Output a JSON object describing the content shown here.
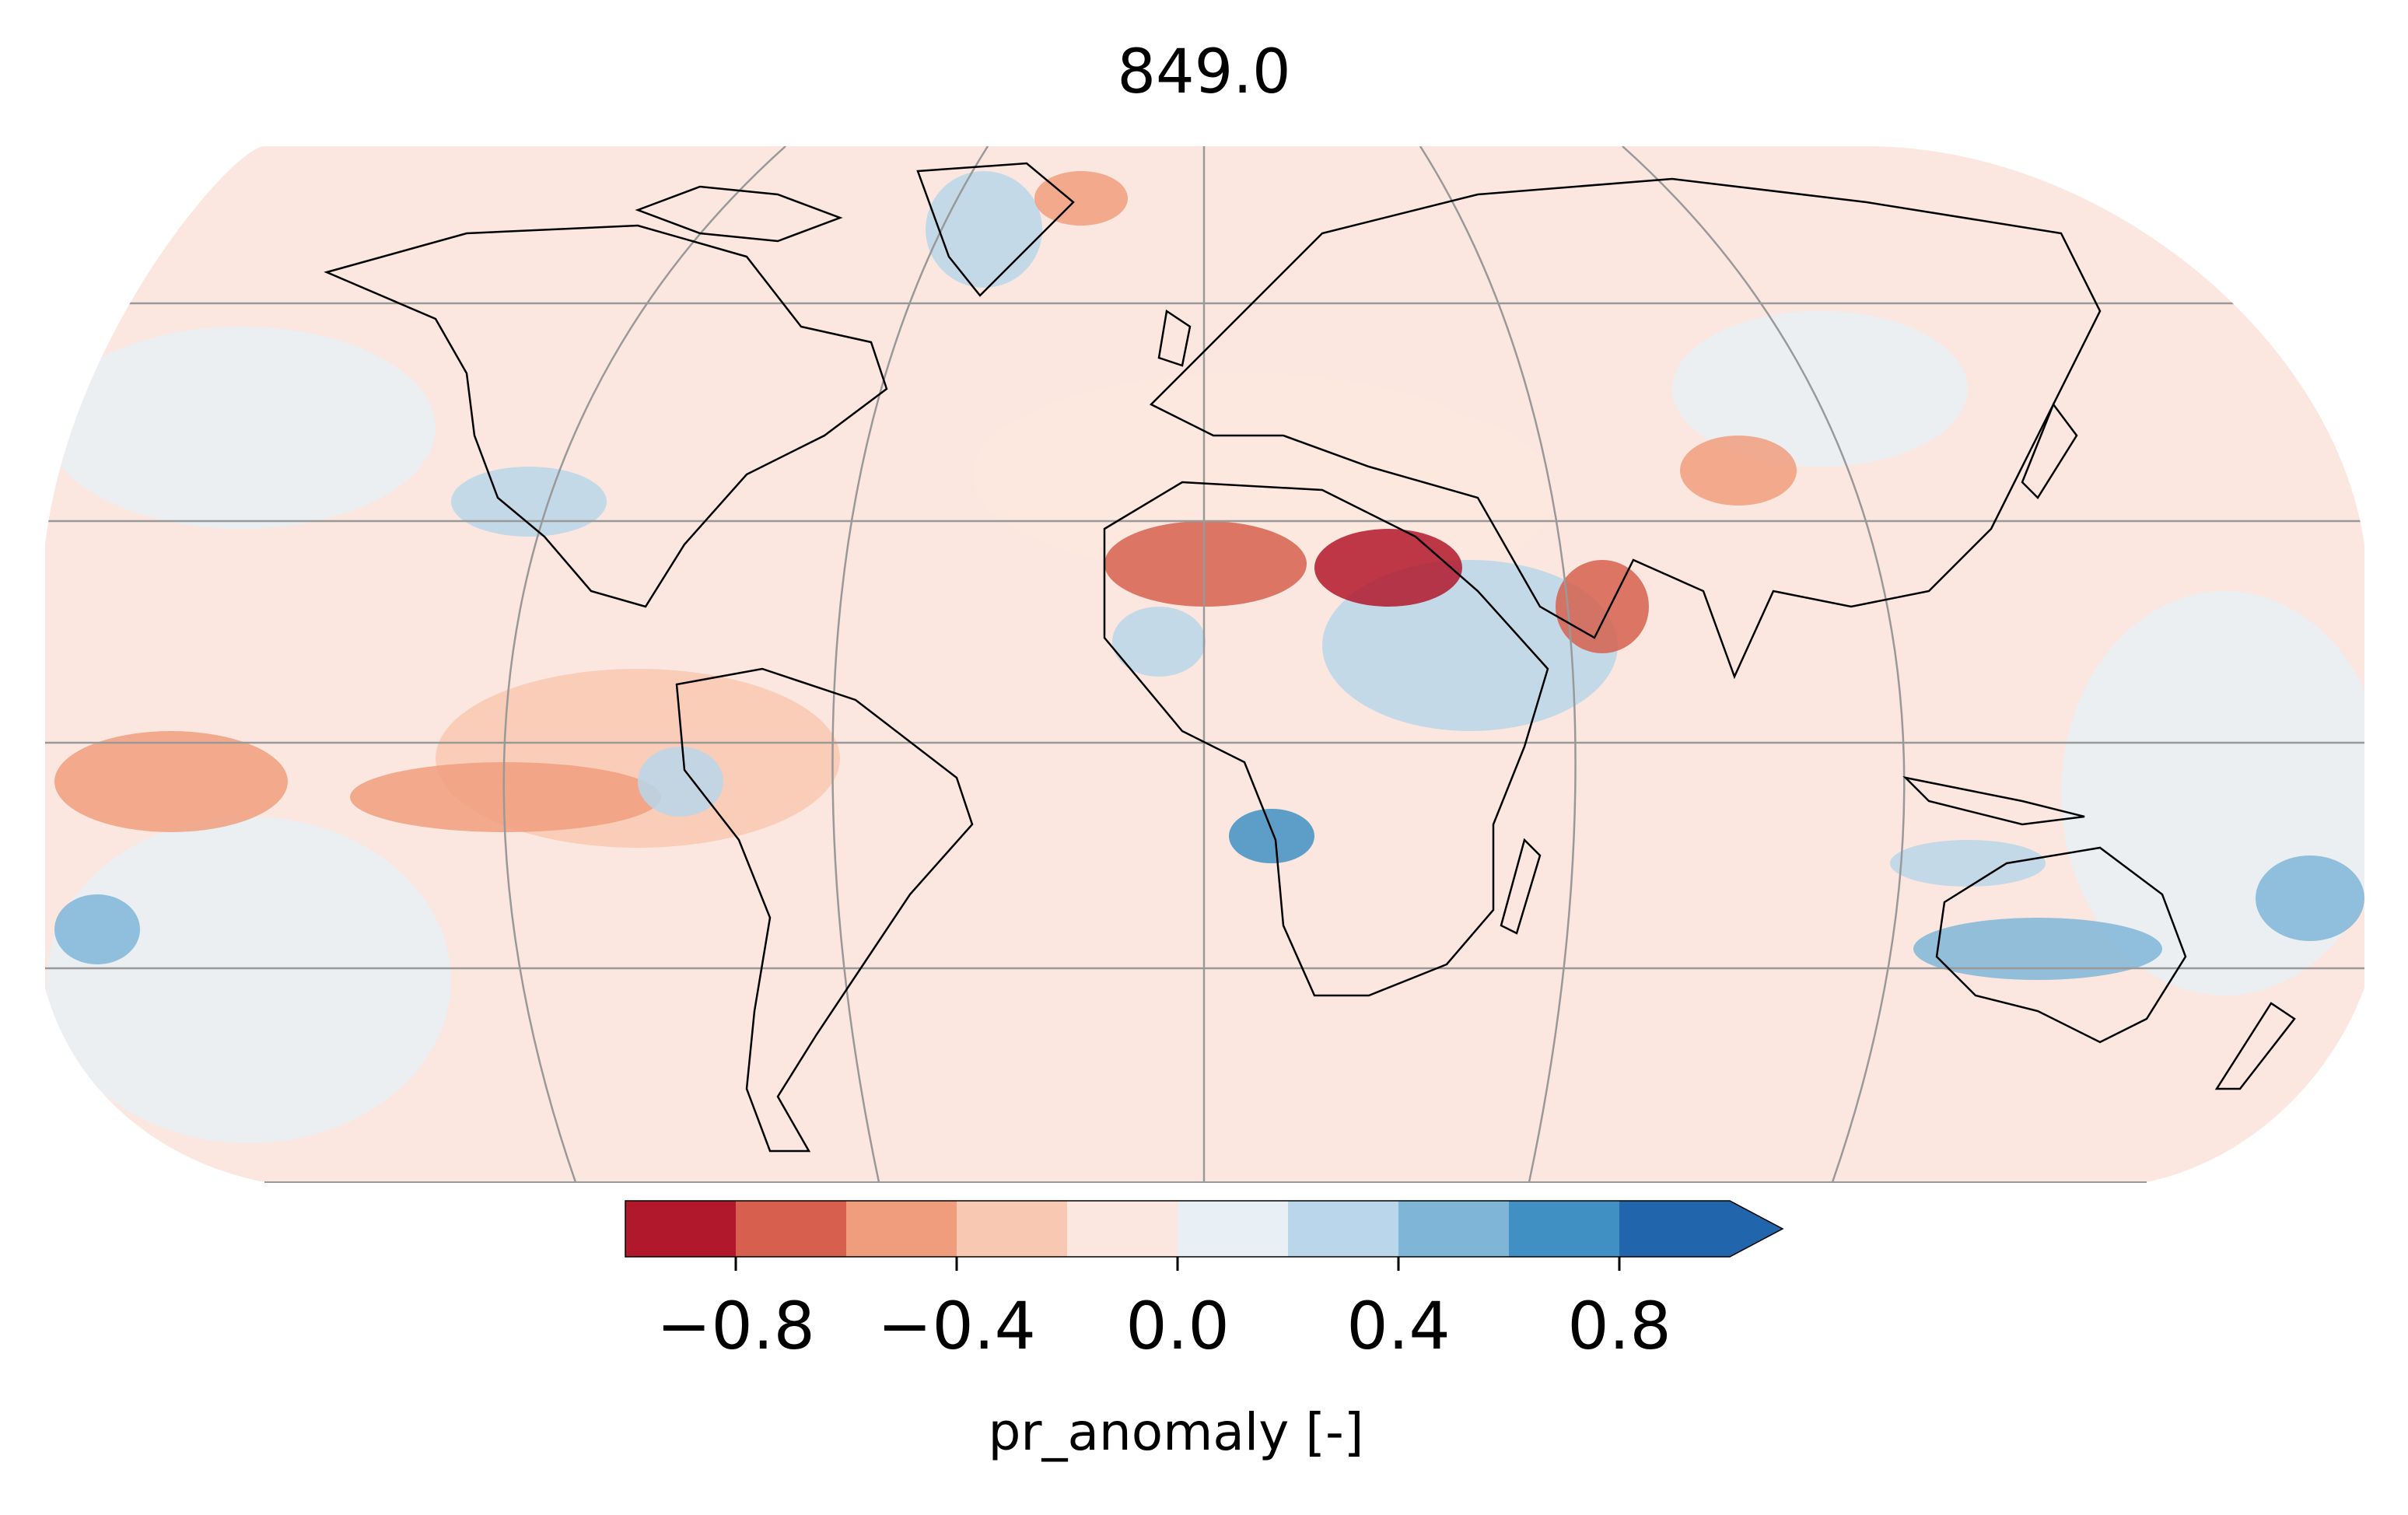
{
  "title": "849.0",
  "map": {
    "projection": "Robinson",
    "variable": "pr_anomaly",
    "graticule": true,
    "coastlines": true,
    "colors": {
      "ocean_neutral_pos": "#fbe7df",
      "ocean_neutral_neg": "#e8f0f6",
      "graticule": "#999999",
      "coastline": "#000000"
    }
  },
  "colorbar": {
    "label": "pr_anomaly [-]",
    "extend": "max",
    "boundaries": [
      -1.0,
      -0.8,
      -0.6,
      -0.4,
      -0.2,
      0.0,
      0.2,
      0.4,
      0.6,
      0.8,
      1.0
    ],
    "colors": [
      "#b2182b",
      "#d6604d",
      "#f09d7e",
      "#f9c8b2",
      "#fbe7df",
      "#e8f0f6",
      "#b9d6ea",
      "#7fb6d8",
      "#4090c4",
      "#2166ac"
    ],
    "extend_color": "#2166ac",
    "ticks": [
      {
        "value": -0.8,
        "label": "−0.8"
      },
      {
        "value": -0.4,
        "label": "−0.4"
      },
      {
        "value": 0.0,
        "label": "0.0"
      },
      {
        "value": 0.4,
        "label": "0.4"
      },
      {
        "value": 0.8,
        "label": "0.8"
      }
    ]
  }
}
